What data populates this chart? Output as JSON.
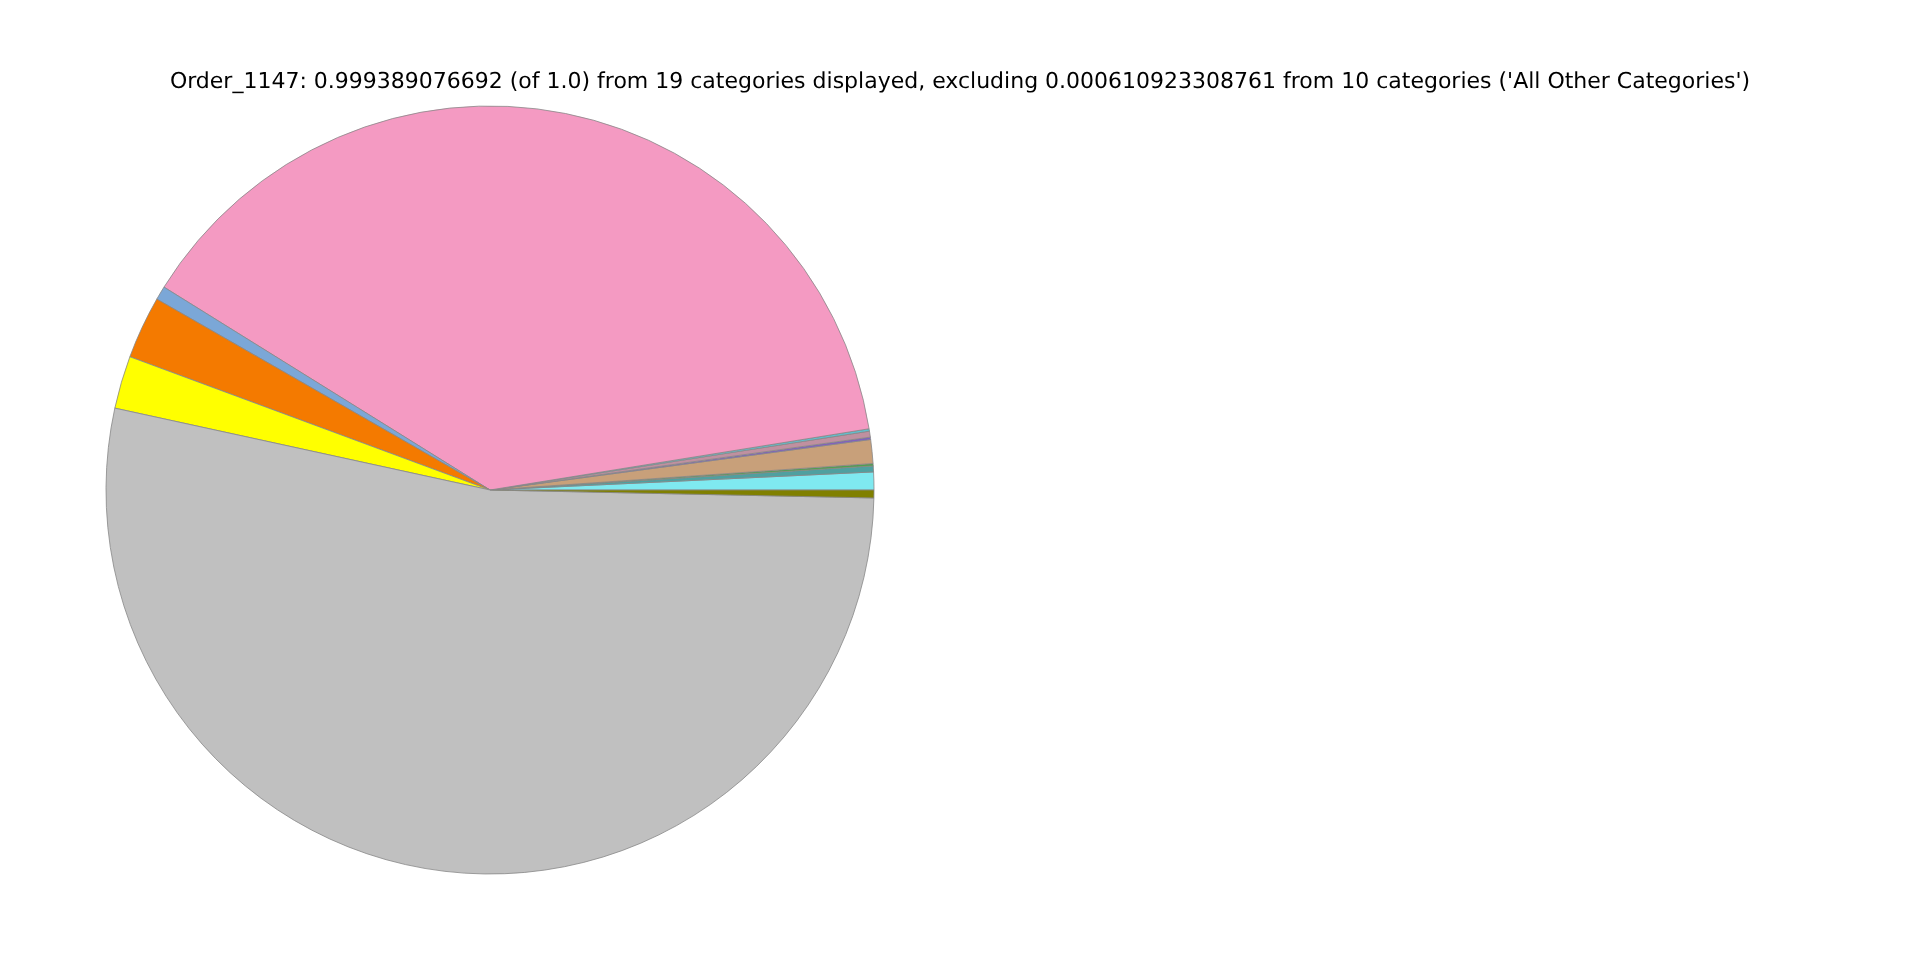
{
  "chart_data": {
    "type": "pie",
    "title": "Order_1147: 0.999389076692 (of 1.0) from 19 categories displayed, excluding 0.000610923308761 from 10 categories ('All Other Categories')",
    "categories": [
      null,
      null,
      null,
      null,
      null,
      null,
      null,
      null,
      null,
      null,
      null,
      null,
      null
    ],
    "values": [
      0.75,
      0.25,
      0.1,
      1.0,
      0.1,
      0.25,
      0.1,
      38.59,
      0.58,
      2.64,
      2.22,
      53.09,
      0.33
    ],
    "colors": [
      "#7fe9f0",
      "#4fa0a0",
      "#50a050",
      "#c8a07a",
      "#8060c0",
      "#c090a0",
      "#5fc0d0",
      "#f49ac2",
      "#7ba7d7",
      "#f47a00",
      "#ffff00",
      "#c0c0c0",
      "#808000"
    ]
  }
}
